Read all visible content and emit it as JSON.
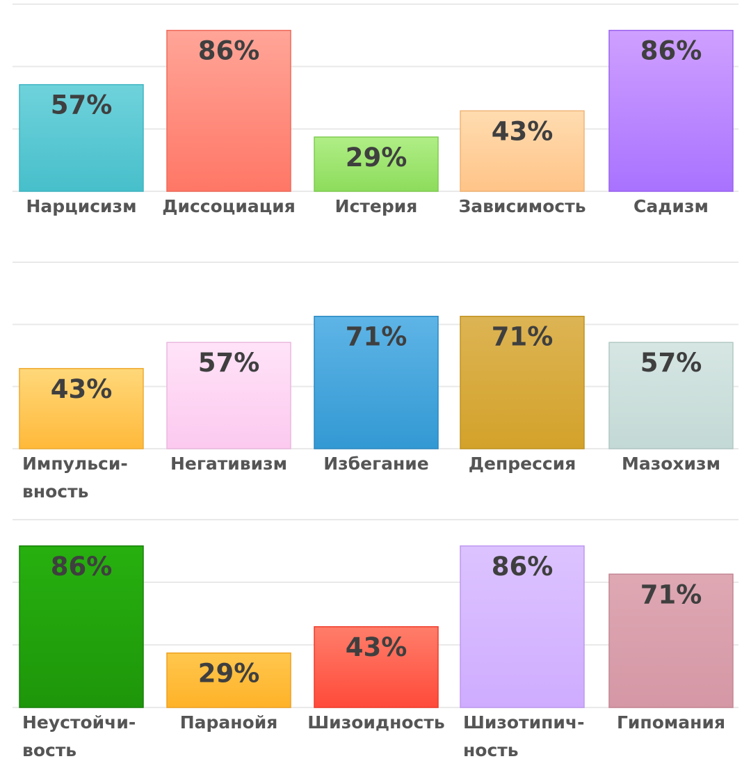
{
  "chart_data": [
    {
      "type": "bar",
      "ylim": [
        0,
        100
      ],
      "grid": true,
      "categories": [
        "Нарцисизм",
        "Диссоциация",
        "Истерия",
        "Зависимость",
        "Садизм"
      ],
      "values": [
        57,
        86,
        29,
        43,
        86
      ],
      "value_labels": [
        "57%",
        "86%",
        "29%",
        "43%",
        "86%"
      ],
      "colors": [
        [
          "#6fd2db",
          "#47bfcb",
          "#3fb5c1"
        ],
        [
          "#ffa598",
          "#ff7766",
          "#ee6a5a"
        ],
        [
          "#b0ee86",
          "#8ddc5c",
          "#7fcc50"
        ],
        [
          "#ffdcb0",
          "#ffc488",
          "#f0b476"
        ],
        [
          "#cfa0ff",
          "#a972ff",
          "#9a62ef"
        ]
      ]
    },
    {
      "type": "bar",
      "ylim": [
        0,
        100
      ],
      "grid": true,
      "categories": [
        "Импульси-|вность",
        "Негативизм",
        "Избегание",
        "Депрессия",
        "Мазохизм"
      ],
      "values": [
        43,
        57,
        71,
        71,
        57
      ],
      "value_labels": [
        "43%",
        "57%",
        "71%",
        "71%",
        "57%"
      ],
      "colors": [
        [
          "#ffd87a",
          "#ffb93a",
          "#eeaa30"
        ],
        [
          "#ffe3f8",
          "#fcc9ef",
          "#eab8de"
        ],
        [
          "#5eb4e6",
          "#3399d3",
          "#2a88c0"
        ],
        [
          "#ddb454",
          "#d3a22a",
          "#c09220"
        ],
        [
          "#d6e6e3",
          "#c3d9d5",
          "#b2c8c4"
        ]
      ]
    },
    {
      "type": "bar",
      "ylim": [
        0,
        100
      ],
      "grid": true,
      "categories": [
        "Неустойчи-|вость",
        "Паранойя",
        "Шизоидность",
        "Шизотипич-|ность",
        "Гипомания"
      ],
      "values": [
        86,
        29,
        43,
        86,
        71
      ],
      "value_labels": [
        "86%",
        "29%",
        "43%",
        "86%",
        "71%"
      ],
      "colors": [
        [
          "#27b00f",
          "#1e960a",
          "#168008"
        ],
        [
          "#ffc74e",
          "#ffb228",
          "#eea020"
        ],
        [
          "#ff7e6a",
          "#ff4a3a",
          "#ee3a2a"
        ],
        [
          "#dcc3ff",
          "#cfacff",
          "#bd98ef"
        ],
        [
          "#dea8b3",
          "#d597a5",
          "#c48694"
        ]
      ]
    }
  ]
}
